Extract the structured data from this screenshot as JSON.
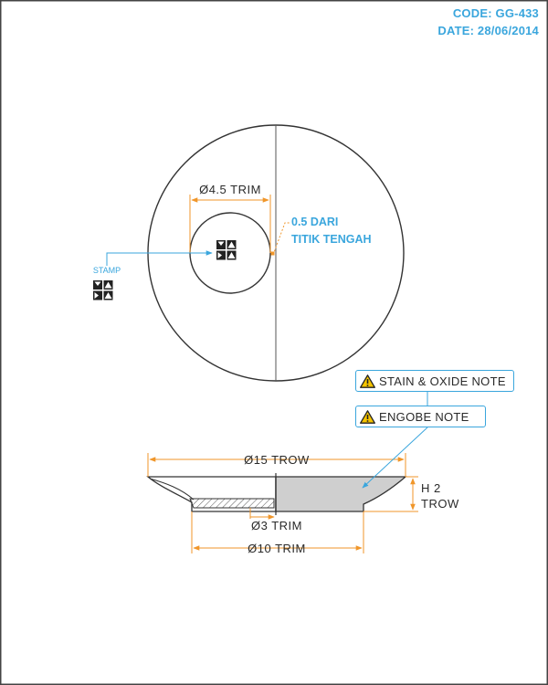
{
  "header": {
    "code": "CODE: GG-433",
    "date": "DATE: 28/06/2014"
  },
  "top_view": {
    "inner_diameter_label": "Ø4.5 TRIM",
    "offset_note_line1": "0.5 DARI",
    "offset_note_line2": "TITIK TENGAH",
    "stamp_label": "STAMP"
  },
  "notes": {
    "stain_oxide": "STAIN & OXIDE NOTE",
    "engobe": "ENGOBE NOTE"
  },
  "section_view": {
    "outer_diameter_label": "Ø15 TROW",
    "height_line1": "H 2",
    "height_line2": "TROW",
    "foot_diameter_label": "Ø3 TRIM",
    "base_diameter_label": "Ø10 TRIM"
  },
  "colors": {
    "dimension": "#f0962a",
    "callout": "#3aa6dd",
    "outline": "#3a3a3a",
    "section_fill": "#cfcfcf"
  },
  "icons": {
    "warning": "warning-triangle-icon",
    "stamp": "stamp-mark-icon"
  }
}
